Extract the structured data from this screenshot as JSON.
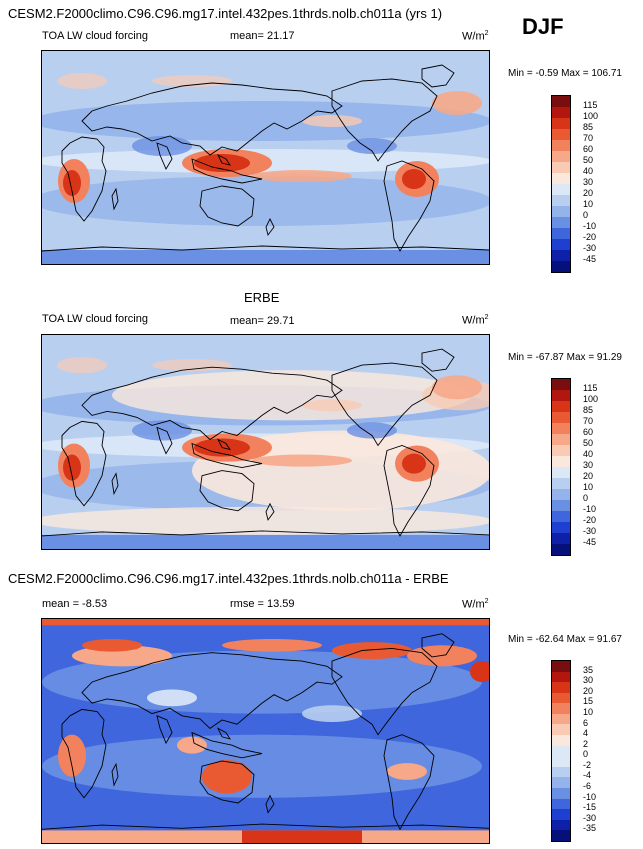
{
  "header": {
    "title": "CESM2.F2000climo.C96.C96.mg17.intel.432pes.1thrds.nolb.ch011a (yrs 1)",
    "season": "DJF"
  },
  "panels": [
    {
      "id": "model",
      "variable": "TOA LW cloud forcing",
      "stat_text": "mean=  21.17",
      "units": "W/m",
      "units_sup": "2",
      "minmax": "Min = -0.59 Max = 106.71",
      "levels": [
        "115",
        "100",
        "85",
        "70",
        "60",
        "50",
        "40",
        "30",
        "20",
        "10",
        "0",
        "-10",
        "-20",
        "-30",
        "-45"
      ]
    },
    {
      "id": "obs",
      "caption": "ERBE",
      "variable": "TOA LW cloud forcing",
      "stat_text": "mean=  29.71",
      "units": "W/m",
      "units_sup": "2",
      "minmax": "Min = -67.87 Max = 91.29",
      "levels": [
        "115",
        "100",
        "85",
        "70",
        "60",
        "50",
        "40",
        "30",
        "20",
        "10",
        "0",
        "-10",
        "-20",
        "-30",
        "-45"
      ]
    },
    {
      "id": "diff",
      "caption": "CESM2.F2000climo.C96.C96.mg17.intel.432pes.1thrds.nolb.ch011a - ERBE",
      "mean_text": "mean =  -8.53",
      "rmse_text": "rmse =  13.59",
      "units": "W/m",
      "units_sup": "2",
      "minmax": "Min = -62.64 Max = 91.67",
      "levels": [
        "35",
        "30",
        "20",
        "15",
        "10",
        "6",
        "4",
        "2",
        "0",
        "-2",
        "-4",
        "-6",
        "-10",
        "-15",
        "-30",
        "-35"
      ]
    }
  ],
  "colors": {
    "scale_full": [
      "#7a0d0d",
      "#b3160f",
      "#d83418",
      "#ea5a32",
      "#f2825e",
      "#f6a889",
      "#f9cbb4",
      "#fbe8dc",
      "#dde8f7",
      "#b9cff0",
      "#93b3ea",
      "#6a90e3",
      "#3f66dc",
      "#1e3fcf",
      "#0e1fa8",
      "#06107a"
    ],
    "land_line": "#000000"
  }
}
